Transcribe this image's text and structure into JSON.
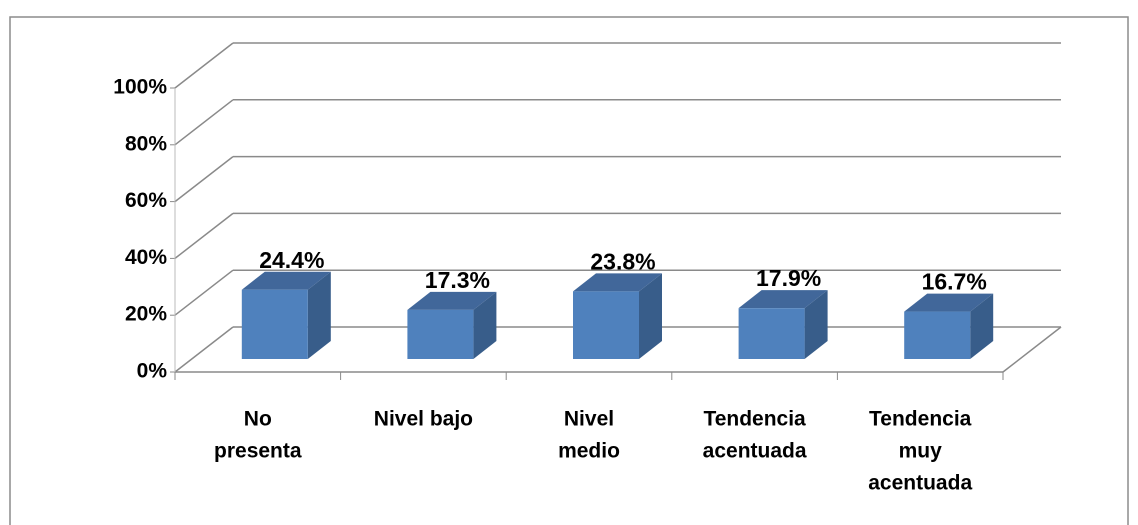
{
  "chart_data": {
    "type": "bar3d",
    "categories": [
      [
        "No",
        "presenta"
      ],
      [
        "Nivel bajo"
      ],
      [
        "Nivel",
        "medio"
      ],
      [
        "Tendencia",
        "acentuada"
      ],
      [
        "Tendencia",
        "muy",
        "acentuada"
      ]
    ],
    "values": [
      24.4,
      17.3,
      23.8,
      17.9,
      16.7
    ],
    "value_labels": [
      "24.4%",
      "17.3%",
      "23.8%",
      "17.9%",
      "16.7%"
    ],
    "color": "#4f81bd",
    "ylim": [
      0,
      100
    ],
    "yticks": [
      {
        "value": 0,
        "label": "0%"
      },
      {
        "value": 20,
        "label": "20%"
      },
      {
        "value": 40,
        "label": "40%"
      },
      {
        "value": 60,
        "label": "60%"
      },
      {
        "value": 80,
        "label": "80%"
      },
      {
        "value": 100,
        "label": "100%"
      }
    ],
    "grid": true
  }
}
